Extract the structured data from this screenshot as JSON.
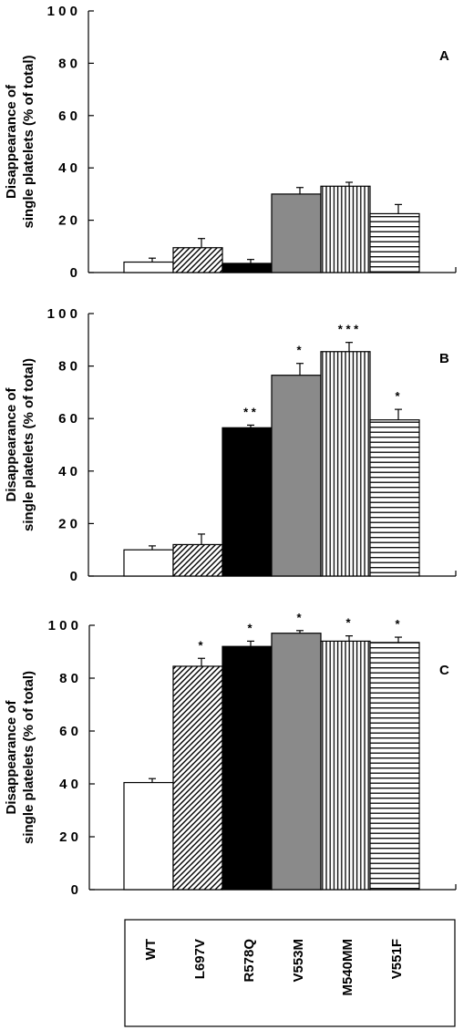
{
  "chart_data": {
    "type": "bar",
    "categories": [
      "WT",
      "L697V",
      "R578Q",
      "V553M",
      "M540MM",
      "V551F"
    ],
    "category_fills": [
      "white",
      "diagonal-hatch",
      "black",
      "gray",
      "vertical-lines",
      "horizontal-lines"
    ],
    "colors": {
      "gray": "#8a8a8a",
      "black": "#000000",
      "white": "#ffffff"
    },
    "panels": [
      {
        "letter": "A",
        "ylabel_lines": [
          "Disappearance of",
          "single platelets (% of total)"
        ],
        "ylim": [
          0,
          100
        ],
        "yticks": [
          0,
          20,
          40,
          60,
          80,
          100
        ],
        "ytick_labels": [
          "0",
          "2 0",
          "4 0",
          "6 0",
          "8 0",
          "1 0 0"
        ],
        "values": [
          4,
          9.5,
          3.5,
          30,
          33,
          22.5
        ],
        "errors": [
          1.5,
          3.5,
          1.5,
          2.5,
          1.5,
          3.5
        ],
        "stars": [
          "",
          "",
          "",
          "",
          "",
          ""
        ]
      },
      {
        "letter": "B",
        "ylabel_lines": [
          "Disappearance of",
          "single platelets (% of total)"
        ],
        "ylim": [
          0,
          100
        ],
        "yticks": [
          0,
          20,
          40,
          60,
          80,
          100
        ],
        "ytick_labels": [
          "0",
          "2 0",
          "4 0",
          "6 0",
          "8 0",
          "1 0 0"
        ],
        "values": [
          10,
          12,
          56.5,
          76.5,
          85.5,
          59.5
        ],
        "errors": [
          1.5,
          4,
          1,
          4.5,
          3.5,
          4
        ],
        "stars": [
          "",
          "",
          "* *",
          "*",
          "* * *",
          "*"
        ]
      },
      {
        "letter": "C",
        "ylabel_lines": [
          "Disappearance of",
          "single platelets (% of total)"
        ],
        "ylim": [
          0,
          100
        ],
        "yticks": [
          0,
          20,
          40,
          60,
          80,
          100
        ],
        "ytick_labels": [
          "0",
          "2 0",
          "4 0",
          "6 0",
          "8 0",
          "1 0 0"
        ],
        "values": [
          40.5,
          84.5,
          92,
          97,
          94,
          93.5
        ],
        "errors": [
          1.5,
          3,
          2,
          1,
          2,
          2
        ],
        "stars": [
          "",
          "*",
          "*",
          "*",
          "*",
          "*"
        ]
      }
    ]
  }
}
